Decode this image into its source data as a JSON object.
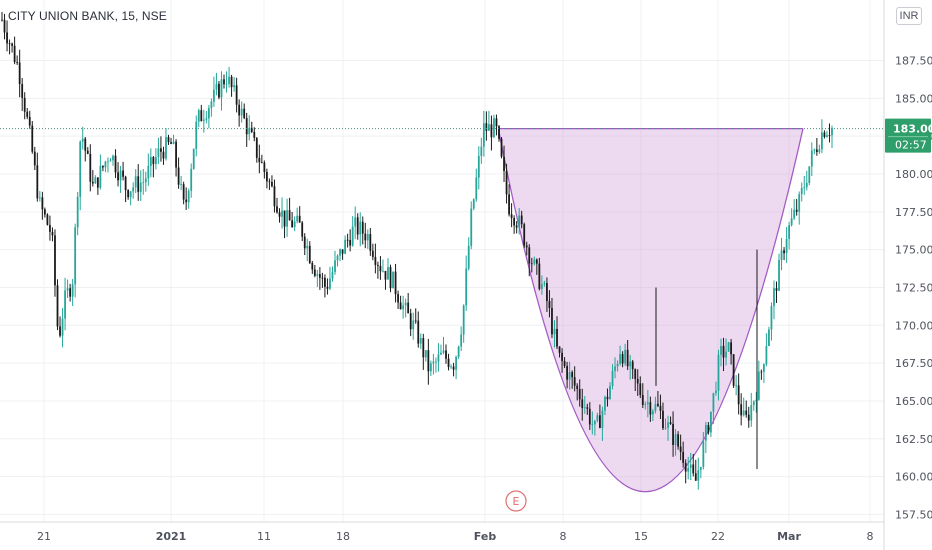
{
  "symbol_title": "CITY UNION BANK, 15, NSE",
  "currency_label": "INR",
  "last_price_label": "183.00",
  "countdown_label": "02:57",
  "event_marker": "E",
  "colors": {
    "up": "#26a69a",
    "down": "#1a1a1a",
    "cup_fill": "rgba(214,170,222,0.45)",
    "cup_stroke": "#a35bc4",
    "price_tag": "#2e9e6a",
    "last_price_line": "#4a8f7d",
    "event_marker": "#e06f6f"
  },
  "chart_data": {
    "type": "candlestick",
    "title": "CITY UNION BANK, 15, NSE",
    "xlabel": "",
    "ylabel": "",
    "ylim": [
      157.0,
      191.5
    ],
    "y_ticks": [
      "157.50",
      "160.00",
      "162.50",
      "165.00",
      "167.50",
      "170.00",
      "172.50",
      "175.00",
      "177.50",
      "180.00",
      "182.50",
      "185.00",
      "187.50"
    ],
    "y_tick_values": [
      157.5,
      160,
      162.5,
      165,
      167.5,
      170,
      172.5,
      175,
      177.5,
      180,
      182.5,
      185,
      187.5
    ],
    "x_tick_labels": [
      "21",
      "2021",
      "11",
      "18",
      "Feb",
      "8",
      "15",
      "22",
      "Mar",
      "8"
    ],
    "last_price": 183.0,
    "price_series": [
      {
        "t": 0,
        "p": 190.2
      },
      {
        "t": 0.02,
        "p": 187.0
      },
      {
        "t": 0.035,
        "p": 182.0
      },
      {
        "t": 0.045,
        "p": 178.0
      },
      {
        "t": 0.06,
        "p": 176.0
      },
      {
        "t": 0.068,
        "p": 169.0
      },
      {
        "t": 0.075,
        "p": 171.5
      },
      {
        "t": 0.085,
        "p": 173.0
      },
      {
        "t": 0.095,
        "p": 183.0
      },
      {
        "t": 0.11,
        "p": 179.0
      },
      {
        "t": 0.13,
        "p": 181.5
      },
      {
        "t": 0.15,
        "p": 179.0
      },
      {
        "t": 0.17,
        "p": 179.5
      },
      {
        "t": 0.19,
        "p": 181.5
      },
      {
        "t": 0.205,
        "p": 182.0
      },
      {
        "t": 0.22,
        "p": 177.5
      },
      {
        "t": 0.235,
        "p": 183.5
      },
      {
        "t": 0.255,
        "p": 185.0
      },
      {
        "t": 0.27,
        "p": 186.5
      },
      {
        "t": 0.285,
        "p": 184.5
      },
      {
        "t": 0.31,
        "p": 181.0
      },
      {
        "t": 0.325,
        "p": 179.0
      },
      {
        "t": 0.34,
        "p": 177.0
      },
      {
        "t": 0.36,
        "p": 176.5
      },
      {
        "t": 0.375,
        "p": 174.0
      },
      {
        "t": 0.39,
        "p": 172.5
      },
      {
        "t": 0.41,
        "p": 175.0
      },
      {
        "t": 0.425,
        "p": 176.5
      },
      {
        "t": 0.44,
        "p": 176.0
      },
      {
        "t": 0.455,
        "p": 174.0
      },
      {
        "t": 0.47,
        "p": 173.0
      },
      {
        "t": 0.485,
        "p": 171.0
      },
      {
        "t": 0.5,
        "p": 169.5
      },
      {
        "t": 0.515,
        "p": 167.0
      },
      {
        "t": 0.53,
        "p": 168.0
      },
      {
        "t": 0.545,
        "p": 167.5
      },
      {
        "t": 0.555,
        "p": 170.5
      },
      {
        "t": 0.565,
        "p": 177.0
      },
      {
        "t": 0.58,
        "p": 183.0
      },
      {
        "t": 0.595,
        "p": 183.0
      },
      {
        "t": 0.61,
        "p": 178.0
      },
      {
        "t": 0.625,
        "p": 176.5
      },
      {
        "t": 0.64,
        "p": 174.0
      },
      {
        "t": 0.655,
        "p": 172.0
      },
      {
        "t": 0.67,
        "p": 168.0
      },
      {
        "t": 0.685,
        "p": 166.5
      },
      {
        "t": 0.7,
        "p": 165.0
      },
      {
        "t": 0.715,
        "p": 163.0
      },
      {
        "t": 0.73,
        "p": 165.5
      },
      {
        "t": 0.745,
        "p": 168.5
      },
      {
        "t": 0.76,
        "p": 166.5
      },
      {
        "t": 0.775,
        "p": 165.0
      },
      {
        "t": 0.79,
        "p": 164.5
      },
      {
        "t": 0.805,
        "p": 163.0
      },
      {
        "t": 0.82,
        "p": 161.5
      },
      {
        "t": 0.835,
        "p": 159.5
      },
      {
        "t": 0.845,
        "p": 162.0
      },
      {
        "t": 0.855,
        "p": 164.5
      },
      {
        "t": 0.865,
        "p": 168.0
      },
      {
        "t": 0.875,
        "p": 168.5
      },
      {
        "t": 0.885,
        "p": 165.5
      },
      {
        "t": 0.895,
        "p": 163.5
      },
      {
        "t": 0.905,
        "p": 165.0
      },
      {
        "t": 0.915,
        "p": 167.0
      },
      {
        "t": 0.93,
        "p": 172.0
      },
      {
        "t": 0.945,
        "p": 176.0
      },
      {
        "t": 0.96,
        "p": 178.0
      },
      {
        "t": 0.975,
        "p": 181.0
      },
      {
        "t": 0.99,
        "p": 183.0
      },
      {
        "t": 1.0,
        "p": 183.0
      }
    ],
    "annotation": {
      "type": "cup",
      "left": {
        "t": 0.598,
        "p": 183.0
      },
      "bottom": {
        "t": 0.775,
        "p": 159.0
      },
      "right": {
        "t": 0.965,
        "p": 183.0
      }
    }
  }
}
